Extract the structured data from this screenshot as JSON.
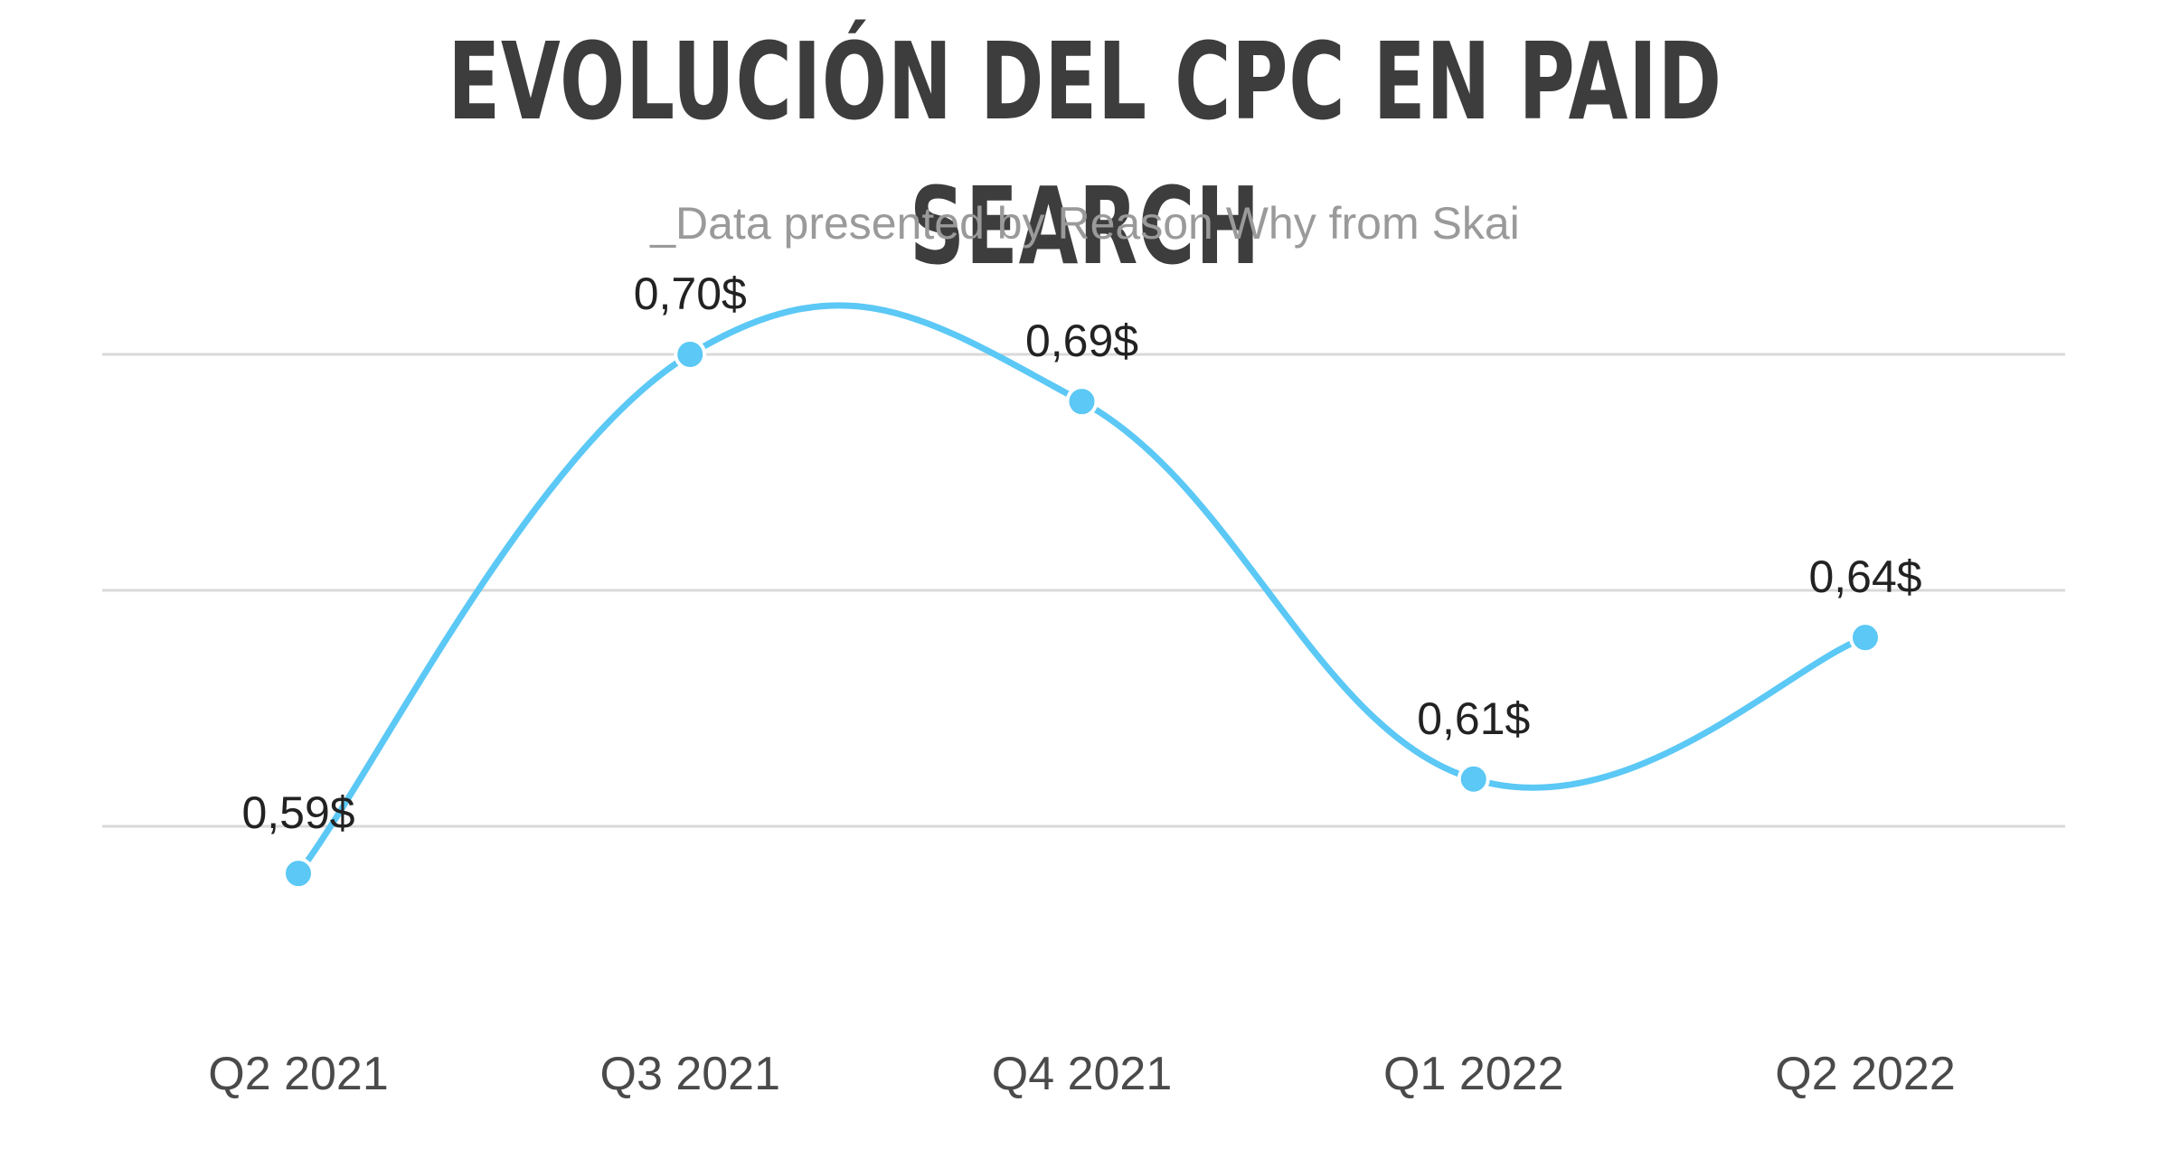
{
  "chart_data": {
    "type": "line",
    "title": "EVOLUCIÓN DEL CPC EN PAID SEARCH",
    "subtitle": "_Data presented by Reason Why from Skai",
    "categories": [
      "Q2 2021",
      "Q3 2021",
      "Q4 2021",
      "Q1 2022",
      "Q2 2022"
    ],
    "series": [
      {
        "values": [
          0.59,
          0.7,
          0.69,
          0.61,
          0.64
        ],
        "labels": [
          "0,59$",
          "0,70$",
          "0,69$",
          "0,61$",
          "0,64$"
        ]
      }
    ],
    "xlabel": "",
    "ylabel": "",
    "ylim": [
      0.559,
      0.709
    ],
    "gridlines": [
      0.6,
      0.65,
      0.7
    ],
    "grid": true,
    "legend": "none",
    "colors": {
      "line": "#5bc8f5",
      "title": "#3d3d3d",
      "subtitle": "#9a9a9a",
      "grid": "#d9d9d9"
    }
  }
}
